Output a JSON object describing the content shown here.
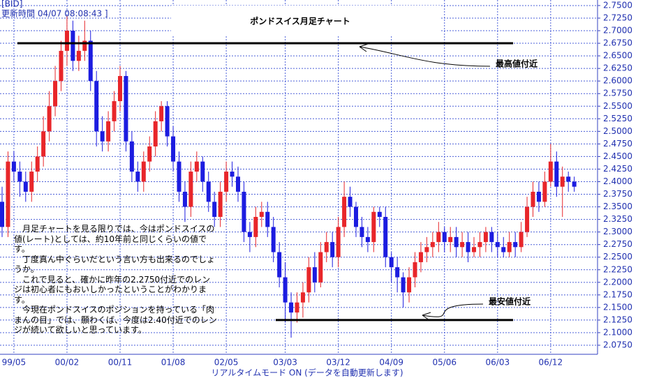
{
  "chart_data": {
    "type": "candlestick",
    "title": "ポンドスイス月足チャート",
    "header": [
      "[BID]",
      "更新時間 04/07 08:08:43 ]"
    ],
    "footer": "リアルタイムモード ON (データを自動更新します)",
    "notes": [
      "月足チャートを見る限りでは、今はポンドスイスの値(レート)としては、約10年前と同じくらいの値です。",
      "丁度真ん中ぐらいだという言い方も出来るのでしょうか。",
      "これで見ると、確かに昨年の2.2750付近でのレンジは初心者にもおいしかったということがわかります。",
      "今現在ポンドスイスのポジションを持っている「肉まんの目」では、願わくば、今度は2.40付近でのレンジが続いて欲しいと思っています。"
    ],
    "annotations": [
      {
        "label": "最高値付近",
        "value": 2.675
      },
      {
        "label": "最安値付近",
        "value": 2.125
      }
    ],
    "up_color": "#e8262a",
    "down_color": "#1c1ce0",
    "categories": [
      null,
      null,
      "99/05",
      null,
      null,
      null,
      null,
      null,
      null,
      null,
      null,
      "00/02",
      null,
      null,
      null,
      null,
      null,
      null,
      null,
      null,
      "00/11",
      null,
      null,
      null,
      null,
      null,
      null,
      null,
      null,
      "01/08",
      null,
      null,
      null,
      null,
      null,
      null,
      null,
      null,
      "02/05",
      null,
      null,
      null,
      null,
      null,
      null,
      null,
      null,
      null,
      "03/03",
      null,
      null,
      null,
      null,
      null,
      null,
      null,
      null,
      "03/12",
      null,
      null,
      null,
      null,
      null,
      null,
      null,
      null,
      "04/09",
      null,
      null,
      null,
      null,
      null,
      null,
      null,
      null,
      "05/06",
      null,
      null,
      null,
      null,
      null,
      null,
      null,
      null,
      "06/03",
      null,
      null,
      null,
      null,
      null,
      null,
      null,
      null,
      "06/12",
      null,
      null,
      null,
      null
    ],
    "open": [
      2.36,
      2.31,
      2.44,
      2.42,
      2.4,
      2.38,
      2.42,
      2.45,
      2.5,
      2.55,
      2.6,
      2.66,
      2.7,
      2.64,
      2.66,
      2.68,
      2.6,
      2.5,
      2.48,
      2.52,
      2.56,
      2.61,
      2.48,
      2.42,
      2.4,
      2.44,
      2.47,
      2.52,
      2.55,
      2.49,
      2.44,
      2.38,
      2.35,
      2.42,
      2.44,
      2.4,
      2.36,
      2.33,
      2.38,
      2.42,
      2.41,
      2.38,
      2.3,
      2.29,
      2.33,
      2.34,
      2.31,
      2.26,
      2.21,
      2.16,
      2.14,
      2.16,
      2.18,
      2.23,
      2.2,
      2.26,
      2.28,
      2.25,
      2.31,
      2.37,
      2.35,
      2.31,
      2.29,
      2.28,
      2.34,
      2.33,
      2.25,
      2.23,
      2.21,
      2.18,
      2.21,
      2.24,
      2.26,
      2.27,
      2.28,
      2.3,
      2.28,
      2.29,
      2.27,
      2.28,
      2.26,
      2.27,
      2.28,
      2.3,
      2.28,
      2.27,
      2.26,
      2.28,
      2.27,
      2.3,
      2.35,
      2.38,
      2.36,
      2.4,
      2.44,
      2.39,
      2.41,
      2.4
    ],
    "high": [
      2.39,
      2.46,
      2.46,
      2.44,
      2.42,
      2.44,
      2.47,
      2.53,
      2.58,
      2.63,
      2.68,
      2.73,
      2.72,
      2.69,
      2.72,
      2.7,
      2.62,
      2.53,
      2.54,
      2.58,
      2.63,
      2.62,
      2.5,
      2.44,
      2.46,
      2.49,
      2.54,
      2.56,
      2.56,
      2.51,
      2.46,
      2.4,
      2.44,
      2.46,
      2.45,
      2.42,
      2.38,
      2.4,
      2.44,
      2.44,
      2.43,
      2.4,
      2.32,
      2.35,
      2.36,
      2.36,
      2.33,
      2.28,
      2.24,
      2.18,
      2.18,
      2.2,
      2.25,
      2.26,
      2.28,
      2.3,
      2.3,
      2.33,
      2.4,
      2.39,
      2.36,
      2.33,
      2.31,
      2.35,
      2.35,
      2.35,
      2.26,
      2.25,
      2.22,
      2.23,
      2.26,
      2.28,
      2.29,
      2.3,
      2.32,
      2.31,
      2.31,
      2.31,
      2.3,
      2.3,
      2.29,
      2.3,
      2.31,
      2.31,
      2.3,
      2.29,
      2.3,
      2.3,
      2.32,
      2.37,
      2.4,
      2.4,
      2.42,
      2.475,
      2.46,
      2.43,
      2.42,
      2.41
    ],
    "low": [
      2.29,
      2.29,
      2.4,
      2.37,
      2.36,
      2.36,
      2.4,
      2.43,
      2.48,
      2.53,
      2.58,
      2.63,
      2.62,
      2.62,
      2.64,
      2.58,
      2.47,
      2.46,
      2.46,
      2.5,
      2.54,
      2.46,
      2.4,
      2.38,
      2.38,
      2.42,
      2.45,
      2.5,
      2.47,
      2.42,
      2.36,
      2.32,
      2.33,
      2.4,
      2.38,
      2.34,
      2.31,
      2.31,
      2.36,
      2.39,
      2.36,
      2.28,
      2.26,
      2.27,
      2.31,
      2.29,
      2.24,
      2.19,
      2.12,
      2.09,
      2.12,
      2.13,
      2.16,
      2.18,
      2.19,
      2.24,
      2.23,
      2.23,
      2.29,
      2.33,
      2.29,
      2.27,
      2.26,
      2.26,
      2.31,
      2.23,
      2.2,
      2.18,
      2.15,
      2.16,
      2.19,
      2.22,
      2.24,
      2.25,
      2.26,
      2.26,
      2.26,
      2.25,
      2.25,
      2.24,
      2.25,
      2.25,
      2.26,
      2.26,
      2.25,
      2.25,
      2.25,
      2.25,
      2.26,
      2.29,
      2.33,
      2.34,
      2.35,
      2.39,
      2.37,
      2.33,
      2.38,
      2.38
    ],
    "close": [
      2.31,
      2.44,
      2.42,
      2.4,
      2.38,
      2.42,
      2.45,
      2.5,
      2.55,
      2.6,
      2.66,
      2.7,
      2.64,
      2.66,
      2.68,
      2.6,
      2.5,
      2.48,
      2.52,
      2.56,
      2.61,
      2.48,
      2.42,
      2.4,
      2.44,
      2.47,
      2.52,
      2.55,
      2.49,
      2.44,
      2.38,
      2.35,
      2.42,
      2.44,
      2.4,
      2.36,
      2.33,
      2.38,
      2.42,
      2.41,
      2.38,
      2.3,
      2.29,
      2.33,
      2.34,
      2.31,
      2.26,
      2.21,
      2.16,
      2.14,
      2.16,
      2.18,
      2.23,
      2.2,
      2.26,
      2.28,
      2.25,
      2.31,
      2.37,
      2.35,
      2.31,
      2.29,
      2.28,
      2.34,
      2.33,
      2.25,
      2.23,
      2.21,
      2.18,
      2.21,
      2.24,
      2.26,
      2.27,
      2.28,
      2.3,
      2.28,
      2.29,
      2.27,
      2.28,
      2.26,
      2.27,
      2.28,
      2.3,
      2.28,
      2.27,
      2.26,
      2.28,
      2.27,
      2.3,
      2.35,
      2.38,
      2.36,
      2.4,
      2.44,
      2.39,
      2.41,
      2.4,
      2.39
    ],
    "ylim": [
      2.057,
      2.761
    ],
    "yticks": [
      {
        "value": 2.075,
        "label": "2.0750"
      },
      {
        "value": 2.1,
        "label": "2.1000"
      },
      {
        "value": 2.125,
        "label": "2.1250"
      },
      {
        "value": 2.15,
        "label": "2.1500"
      },
      {
        "value": 2.175,
        "label": "2.1750"
      },
      {
        "value": 2.2,
        "label": "2.2000"
      },
      {
        "value": 2.225,
        "label": "2.2250"
      },
      {
        "value": 2.25,
        "label": "2.2500"
      },
      {
        "value": 2.275,
        "label": "2.2750"
      },
      {
        "value": 2.3,
        "label": "2.3000"
      },
      {
        "value": 2.325,
        "label": "2.3250"
      },
      {
        "value": 2.35,
        "label": "2.3500"
      },
      {
        "value": 2.375,
        "label": "2.3750"
      },
      {
        "value": 2.4,
        "label": "2.4000"
      },
      {
        "value": 2.425,
        "label": "2.4250"
      },
      {
        "value": 2.45,
        "label": "2.4500"
      },
      {
        "value": 2.475,
        "label": "2.4750"
      },
      {
        "value": 2.5,
        "label": "2.5000"
      },
      {
        "value": 2.525,
        "label": "2.5250"
      },
      {
        "value": 2.55,
        "label": "2.5500"
      },
      {
        "value": 2.575,
        "label": "2.5750"
      },
      {
        "value": 2.6,
        "label": "2.6000"
      },
      {
        "value": 2.625,
        "label": "2.6250"
      },
      {
        "value": 2.65,
        "label": "2.6500"
      },
      {
        "value": 2.675,
        "label": "2.6750"
      },
      {
        "value": 2.7,
        "label": "2.7000"
      },
      {
        "value": 2.725,
        "label": "2.7250"
      },
      {
        "value": 2.75,
        "label": "2.7500"
      }
    ],
    "grid": true
  }
}
